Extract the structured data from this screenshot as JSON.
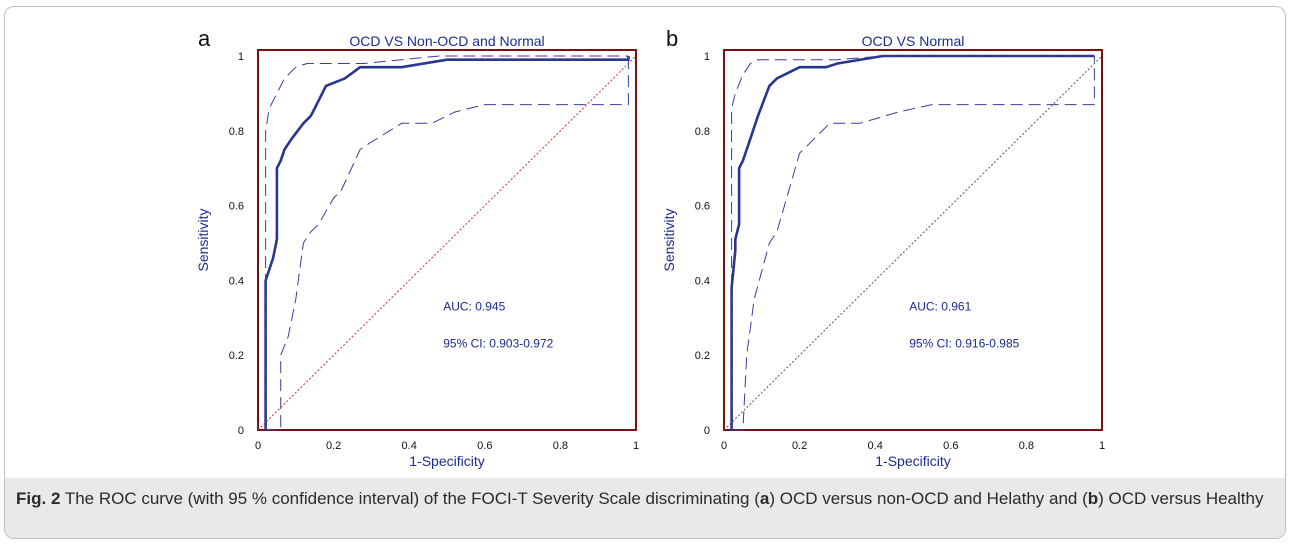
{
  "figure": {
    "caption_label": "Fig. 2",
    "caption_part1": " The ROC curve (with 95 % confidence interval) of the FOCI-T Severity Scale discriminating (",
    "caption_a": "a",
    "caption_part2": ") OCD versus non-OCD and Helathy and (",
    "caption_b": "b",
    "caption_part3": ") OCD versus Healthy"
  },
  "colors": {
    "axis_frame": "#7a1010",
    "curve": "#2a3590",
    "ci": "#3a3f9a",
    "diag_a": "#cc3333",
    "diag_b": "#555566",
    "text": "#1c2b8f"
  },
  "chart_data": [
    {
      "type": "line",
      "panel_letter": "a",
      "title": "OCD VS Non-OCD and Normal",
      "xlabel": "1-Specificity",
      "ylabel": "Sensitivity",
      "xlim": [
        0,
        1
      ],
      "ylim": [
        0,
        1
      ],
      "x_ticks": [
        "0",
        "0.2",
        "0.4",
        "0.6",
        "0.8",
        "1"
      ],
      "y_ticks": [
        "0",
        "0.2",
        "0.4",
        "0.6",
        "0.8",
        "1"
      ],
      "auc_label": "AUC: 0.945",
      "ci_label": "95% CI: 0.903-0.972",
      "series": [
        {
          "role": "roc",
          "x": [
            0.02,
            0.02,
            0.02,
            0.04,
            0.05,
            0.05,
            0.06,
            0.07,
            0.09,
            0.12,
            0.14,
            0.18,
            0.23,
            0.27,
            0.38,
            0.5,
            0.98,
            0.98
          ],
          "y": [
            0.0,
            0.38,
            0.4,
            0.46,
            0.51,
            0.7,
            0.72,
            0.75,
            0.78,
            0.82,
            0.84,
            0.92,
            0.94,
            0.97,
            0.97,
            0.99,
            0.99,
            1.0
          ]
        },
        {
          "role": "ci_upper",
          "x": [
            0.02,
            0.02,
            0.03,
            0.05,
            0.07,
            0.1,
            0.13,
            0.2,
            0.28,
            0.38,
            0.48,
            0.58,
            0.7,
            0.98,
            0.98
          ],
          "y": [
            0.0,
            0.8,
            0.86,
            0.9,
            0.94,
            0.97,
            0.98,
            0.98,
            0.98,
            0.99,
            1.0,
            1.0,
            1.0,
            1.0,
            1.0
          ]
        },
        {
          "role": "ci_lower",
          "x": [
            0.02,
            0.06,
            0.06,
            0.08,
            0.1,
            0.12,
            0.14,
            0.16,
            0.2,
            0.22,
            0.27,
            0.3,
            0.38,
            0.46,
            0.52,
            0.6,
            0.98,
            0.98
          ],
          "y": [
            0.0,
            0.0,
            0.2,
            0.25,
            0.35,
            0.5,
            0.53,
            0.55,
            0.62,
            0.64,
            0.75,
            0.77,
            0.82,
            0.82,
            0.85,
            0.87,
            0.87,
            1.0
          ]
        },
        {
          "role": "reference",
          "x": [
            0,
            1
          ],
          "y": [
            0,
            1
          ]
        }
      ]
    },
    {
      "type": "line",
      "panel_letter": "b",
      "title": "OCD VS Normal",
      "xlabel": "1-Specificity",
      "ylabel": "Sensitivity",
      "xlim": [
        0,
        1
      ],
      "ylim": [
        0,
        1
      ],
      "x_ticks": [
        "0",
        "0.2",
        "0.4",
        "0.6",
        "0.8",
        "1"
      ],
      "y_ticks": [
        "0",
        "0.2",
        "0.4",
        "0.6",
        "0.8",
        "1"
      ],
      "auc_label": "AUC: 0.961",
      "ci_label": "95% CI: 0.916-0.985",
      "series": [
        {
          "role": "roc",
          "x": [
            0.02,
            0.02,
            0.03,
            0.03,
            0.04,
            0.04,
            0.05,
            0.06,
            0.07,
            0.09,
            0.12,
            0.14,
            0.2,
            0.27,
            0.3,
            0.42,
            0.98,
            0.98
          ],
          "y": [
            0.0,
            0.38,
            0.48,
            0.51,
            0.55,
            0.7,
            0.72,
            0.75,
            0.78,
            0.84,
            0.92,
            0.94,
            0.97,
            0.97,
            0.98,
            1.0,
            1.0,
            1.0
          ]
        },
        {
          "role": "ci_upper",
          "x": [
            0.02,
            0.02,
            0.03,
            0.05,
            0.07,
            0.09,
            0.12,
            0.2,
            0.3,
            0.42,
            0.98,
            0.98
          ],
          "y": [
            0.0,
            0.86,
            0.9,
            0.95,
            0.98,
            0.99,
            0.99,
            0.99,
            0.99,
            1.0,
            1.0,
            1.0
          ]
        },
        {
          "role": "ci_lower",
          "x": [
            0.02,
            0.05,
            0.06,
            0.08,
            0.12,
            0.14,
            0.16,
            0.2,
            0.28,
            0.36,
            0.46,
            0.55,
            0.98,
            0.98
          ],
          "y": [
            0.0,
            0.0,
            0.2,
            0.35,
            0.5,
            0.53,
            0.6,
            0.74,
            0.82,
            0.82,
            0.85,
            0.87,
            0.87,
            1.0
          ]
        },
        {
          "role": "reference",
          "x": [
            0,
            1
          ],
          "y": [
            0,
            1
          ]
        }
      ]
    }
  ]
}
